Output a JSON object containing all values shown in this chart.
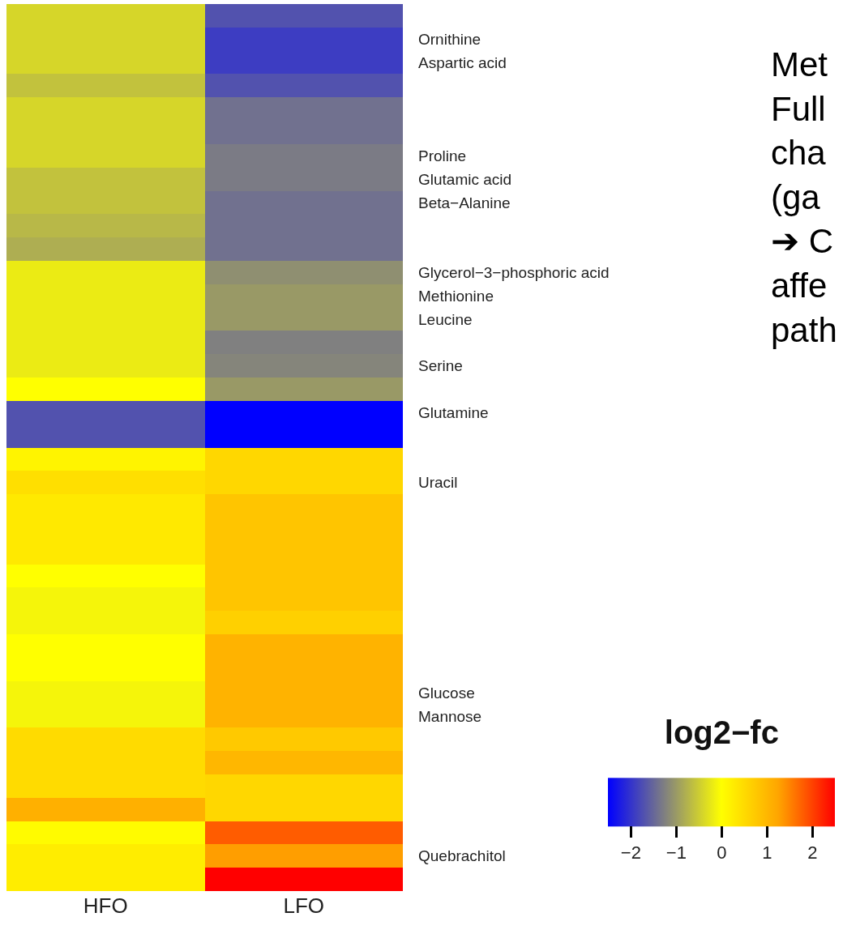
{
  "chart_data": {
    "type": "heatmap",
    "categories": [
      "HFO",
      "LFO"
    ],
    "y_categories": [
      null,
      "Ornithine",
      "Aspartic acid",
      null,
      null,
      null,
      "Proline",
      "Glutamic acid",
      "Beta−Alanine",
      null,
      null,
      "Glycerol−3−phosphoric acid",
      "Methionine",
      "Leucine",
      null,
      "Serine",
      null,
      "Glutamine",
      null,
      null,
      "Uracil",
      null,
      null,
      null,
      null,
      null,
      null,
      null,
      null,
      "Glucose",
      "Mannose",
      null,
      null,
      null,
      null,
      null,
      "Quebrachitol",
      null
    ],
    "cells": [
      [
        -0.4,
        -1.7
      ],
      [
        -0.4,
        -1.9
      ],
      [
        -0.4,
        -1.9
      ],
      [
        -0.6,
        -1.7
      ],
      [
        -0.4,
        -1.4
      ],
      [
        -0.4,
        -1.4
      ],
      [
        -0.4,
        -1.3
      ],
      [
        -0.6,
        -1.3
      ],
      [
        -0.6,
        -1.4
      ],
      [
        -0.7,
        -1.4
      ],
      [
        -0.8,
        -1.4
      ],
      [
        -0.2,
        -1.1
      ],
      [
        -0.2,
        -1.0
      ],
      [
        -0.2,
        -1.0
      ],
      [
        -0.2,
        -1.25
      ],
      [
        -0.2,
        -1.2
      ],
      [
        0,
        -1.0
      ],
      [
        -1.7,
        -2.5
      ],
      [
        -1.7,
        -2.5
      ],
      [
        0.15,
        0.55
      ],
      [
        0.45,
        0.55
      ],
      [
        0.3,
        0.8
      ],
      [
        0.3,
        0.8
      ],
      [
        0.3,
        0.8
      ],
      [
        0,
        0.8
      ],
      [
        -0.1,
        0.8
      ],
      [
        -0.1,
        0.65
      ],
      [
        0,
        1.05
      ],
      [
        0,
        1.05
      ],
      [
        -0.1,
        1.05
      ],
      [
        -0.1,
        1.05
      ],
      [
        0.5,
        0.75
      ],
      [
        0.5,
        1.0
      ],
      [
        0.5,
        0.55
      ],
      [
        1.1,
        0.55
      ],
      [
        0.05,
        1.8
      ],
      [
        0.25,
        1.3
      ],
      [
        0.25,
        2.5
      ]
    ],
    "clabel": "log2−fc",
    "clim": [
      -2.5,
      2.5
    ],
    "cticks": [
      -2,
      -1,
      0,
      1,
      2
    ],
    "annotations": [
      "Met\nFull\ncha\n(ga\n➔ C\naffe\npath"
    ]
  }
}
